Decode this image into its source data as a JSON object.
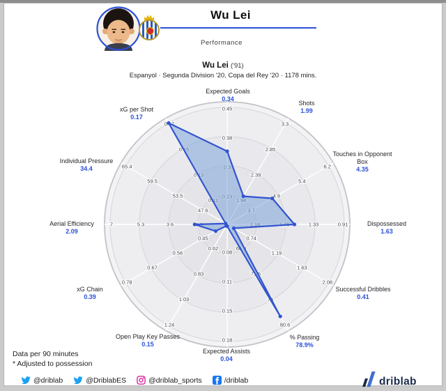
{
  "header": {
    "title": "Wu Lei",
    "subtitle": "Performance"
  },
  "player": {
    "name": "Wu Lei",
    "suffix": "('91)",
    "context": "Espanyol · Segunda Division '20, Copa del Rey '20 · 1178 mins."
  },
  "chart_data": {
    "type": "radar",
    "axes_clockwise_from_top": true,
    "axes": [
      {
        "label": "Expected Goals",
        "value": "0.34",
        "rings": [
          "0.23",
          "0.3",
          "0.38",
          "0.45"
        ]
      },
      {
        "label": "Shots",
        "value": "1.99",
        "rings": [
          "1.94",
          "2.39",
          "2.85",
          "3.3"
        ]
      },
      {
        "label": "Touches in Opponent Box",
        "value": "4.35",
        "rings": [
          "3.7",
          "4.6",
          "5.4",
          "6.2"
        ]
      },
      {
        "label": "Dispossessed",
        "value": "1.63",
        "rings": [
          "2.18",
          "1.76",
          "1.33",
          "0.91"
        ]
      },
      {
        "label": "Successful Dribbles",
        "value": "0.41",
        "rings": [
          "0.74",
          "1.19",
          "1.63",
          "2.08"
        ]
      },
      {
        "label": "% Passing",
        "value": "78.9%",
        "rings": [
          "66.9",
          "71.5",
          "76",
          "80.6"
        ]
      },
      {
        "label": "Expected Assists",
        "value": "0.04",
        "rings": [
          "0.08",
          "0.11",
          "0.15",
          "0.18"
        ]
      },
      {
        "label": "Open Play Key Passes",
        "value": "0.15",
        "rings": [
          "0.62",
          "0.83",
          "1.03",
          "1.24"
        ]
      },
      {
        "label": "xG Chain",
        "value": "0.39",
        "rings": [
          "0.45",
          "0.56",
          "0.67",
          "0.78"
        ]
      },
      {
        "label": "Aerial Efficiency",
        "value": "2.09",
        "rings": [
          "1.9",
          "3.6",
          "5.3",
          "7"
        ]
      },
      {
        "label": "Individual Pressure",
        "value": "34.4",
        "rings": [
          "47.6",
          "53.5",
          "59.5",
          "65.4"
        ]
      },
      {
        "label": "xG per Shot",
        "value": "0.17",
        "rings": [
          "0.11",
          "0.13",
          "0.15",
          "0.17"
        ]
      }
    ]
  },
  "footnotes": {
    "line1": "Data per 90 minutes",
    "line2": "* Adjusted to possession"
  },
  "footer": {
    "social": [
      {
        "icon": "twitter",
        "handle": "@driblab"
      },
      {
        "icon": "twitter",
        "handle": "@DriblabES"
      },
      {
        "icon": "instagram",
        "handle": "@driblab_sports"
      },
      {
        "icon": "facebook",
        "handle": "/driblab"
      }
    ],
    "brand": "driblab"
  },
  "colors": {
    "accent": "#2b50d9",
    "polygon_stroke": "#3354cf",
    "polygon_fill": "#7fa6d9",
    "twitter": "#1da1f2",
    "instagram": "#d6249f",
    "facebook": "#1877f2"
  }
}
